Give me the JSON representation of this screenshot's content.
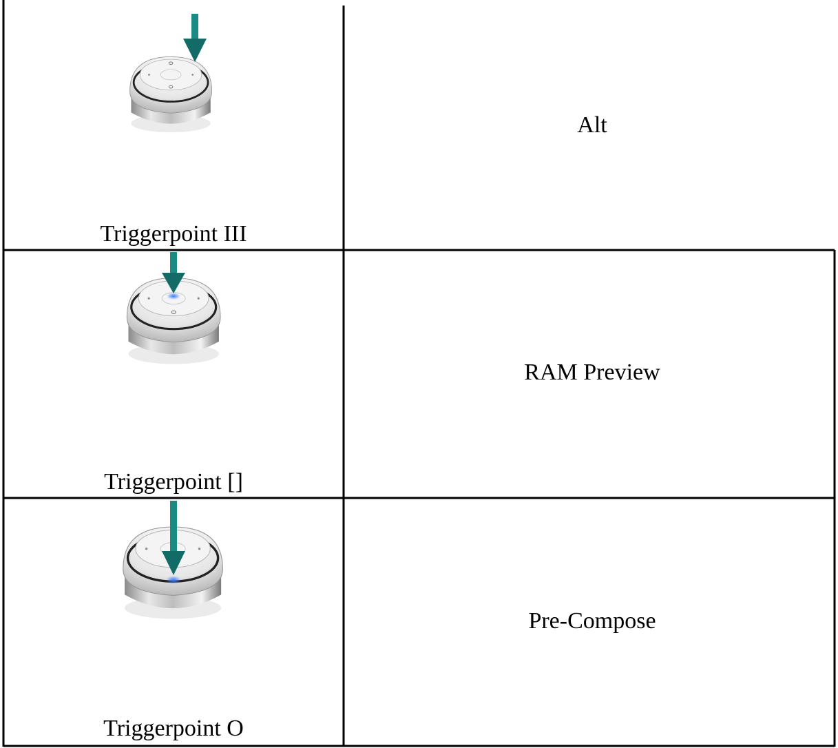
{
  "table": {
    "rows": [
      [
        "Triggerpoint III",
        "Alt"
      ],
      [
        "Triggerpoint []",
        "RAM Preview"
      ],
      [
        "Triggerpoint O",
        "Pre-Compose"
      ]
    ]
  }
}
